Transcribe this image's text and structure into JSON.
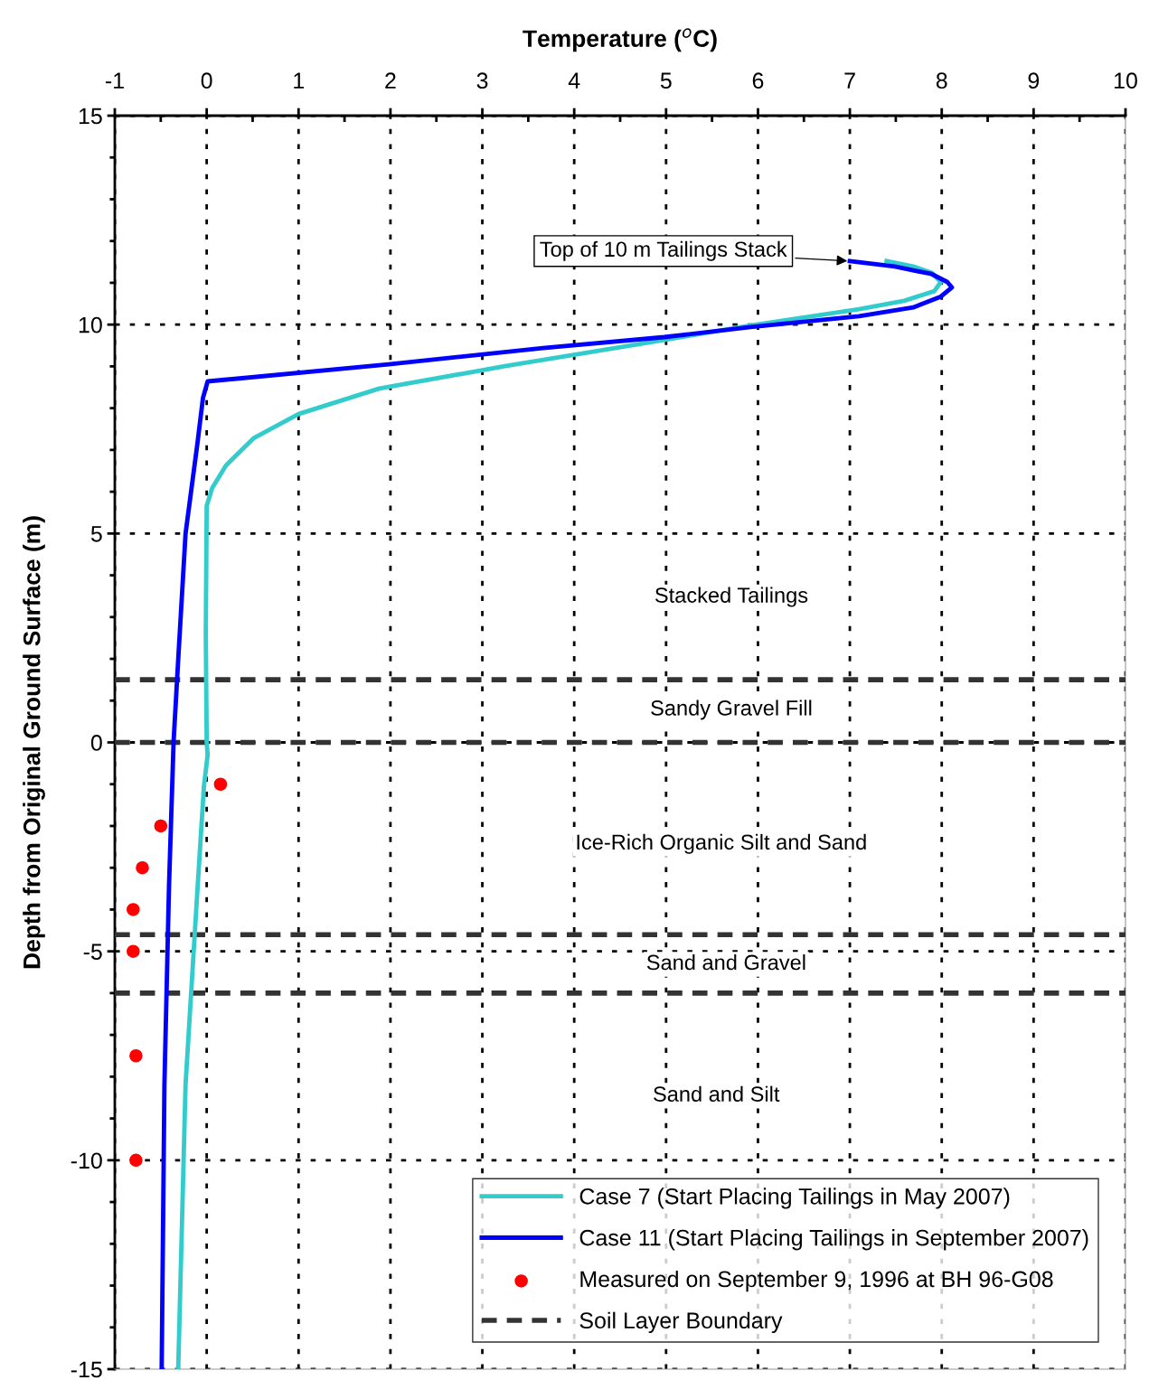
{
  "chart_data": {
    "type": "line",
    "xlabel": "Temperature ($^{o}$C)",
    "ylabel": "Depth from Original Ground Surface (m)",
    "xlim": [
      -1,
      10
    ],
    "xticks": [
      -1,
      0,
      1,
      2,
      3,
      4,
      5,
      6,
      7,
      8,
      9,
      10
    ],
    "ylim": [
      -15,
      15
    ],
    "yticks": [
      -15,
      -10,
      -5,
      0,
      5,
      10,
      15
    ],
    "grid": true,
    "legend": "bottom right",
    "series": [
      {
        "name": "Case 7 (Start Placing Tailings in May 2007)",
        "color": "#33cccc",
        "x": [
          7.4,
          7.69,
          7.89,
          7.99,
          7.92,
          7.59,
          7.1,
          5.92,
          4.64,
          3.26,
          1.88,
          1.0,
          0.51,
          0.21,
          0.06,
          0.0,
          -0.01,
          0.0,
          0.01,
          -0.03,
          -0.11,
          -0.23,
          -0.31
        ],
        "values": [
          11.52,
          11.39,
          11.24,
          11.02,
          10.8,
          10.57,
          10.37,
          9.98,
          9.51,
          9.01,
          8.47,
          7.86,
          7.28,
          6.63,
          6.09,
          5.66,
          2.63,
          0.03,
          -0.3,
          -1.05,
          -3.86,
          -8.19,
          -15
        ]
      },
      {
        "name": "Case 11 (Start Placing Tailings in September 2007)",
        "color": "#0000ff",
        "x": [
          7.0,
          7.49,
          7.89,
          8.06,
          8.11,
          7.99,
          7.69,
          7.1,
          5.92,
          4.98,
          3.66,
          1.98,
          0.01,
          -0.04,
          -0.1,
          -0.23,
          -0.31,
          -0.36,
          -0.41,
          -0.46,
          -0.49
        ],
        "values": [
          11.52,
          11.39,
          11.21,
          11.02,
          10.89,
          10.67,
          10.41,
          10.2,
          9.94,
          9.7,
          9.44,
          9.05,
          8.64,
          8.25,
          7.17,
          5.0,
          1.98,
          0.03,
          -3.43,
          -8.19,
          -15
        ]
      },
      {
        "name": "Measured on September 9, 1996 at BH 96-G08",
        "color": "#ff0000",
        "type": "scatter",
        "marker": "circle",
        "x": [
          0.15,
          -0.5,
          -0.7,
          -0.8,
          -0.8,
          -0.77,
          -0.77
        ],
        "values": [
          -1,
          -2,
          -3,
          -4,
          -5,
          -7.5,
          -10
        ]
      }
    ],
    "ref_lines": [
      {
        "axis": "y",
        "value": 1.5,
        "label": "Soil Layer Boundary",
        "color": "#333333",
        "line_style": "dashed"
      },
      {
        "axis": "y",
        "value": 0,
        "color": "#333333",
        "line_style": "dashed"
      },
      {
        "axis": "y",
        "value": -4.6,
        "color": "#333333",
        "line_style": "dashed"
      },
      {
        "axis": "y",
        "value": -6,
        "color": "#333333",
        "line_style": "dashed"
      }
    ],
    "annotations": [
      {
        "text": "Top of 10 m Tailings Stack",
        "x": 7.0,
        "y": 11.52
      },
      "Stacked Tailings",
      "Sandy Gravel Fill",
      "Ice-Rich Organic Silt and Sand",
      "Sand and Gravel",
      "Sand and Silt"
    ]
  }
}
